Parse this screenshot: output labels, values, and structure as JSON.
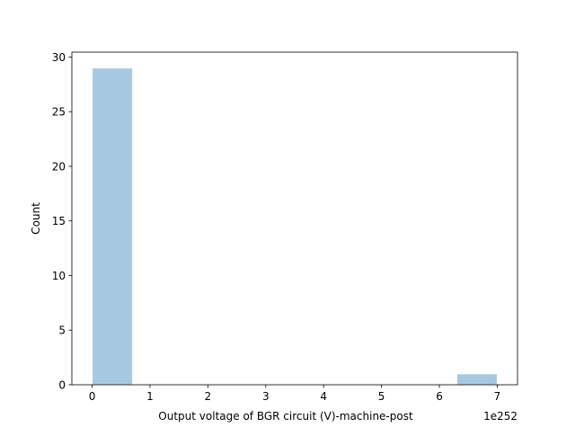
{
  "chart_data": {
    "type": "bar",
    "subtype": "histogram",
    "title": "",
    "xlabel": "Output voltage of BGR circuit (V)-machine-post",
    "ylabel": "Count",
    "x_offset_label": "1e252",
    "x_scale_exponent": 252,
    "xlim": [
      -0.35,
      7.35
    ],
    "ylim": [
      0,
      30.45
    ],
    "xticks": [
      0,
      1,
      2,
      3,
      4,
      5,
      6,
      7
    ],
    "yticks": [
      0,
      5,
      10,
      15,
      20,
      25,
      30
    ],
    "bins": [
      {
        "x0": 0.0,
        "x1": 0.7,
        "count": 29
      },
      {
        "x0": 0.7,
        "x1": 1.4,
        "count": 0
      },
      {
        "x0": 1.4,
        "x1": 2.1,
        "count": 0
      },
      {
        "x0": 2.1,
        "x1": 2.8,
        "count": 0
      },
      {
        "x0": 2.8,
        "x1": 3.5,
        "count": 0
      },
      {
        "x0": 3.5,
        "x1": 4.2,
        "count": 0
      },
      {
        "x0": 4.2,
        "x1": 4.9,
        "count": 0
      },
      {
        "x0": 4.9,
        "x1": 5.6,
        "count": 0
      },
      {
        "x0": 5.6,
        "x1": 6.3,
        "count": 0
      },
      {
        "x0": 6.3,
        "x1": 7.0,
        "count": 1
      }
    ],
    "bar_color": "#a6c8e0",
    "bar_edge_color": "#ffffff",
    "grid": false,
    "legend": "none"
  }
}
